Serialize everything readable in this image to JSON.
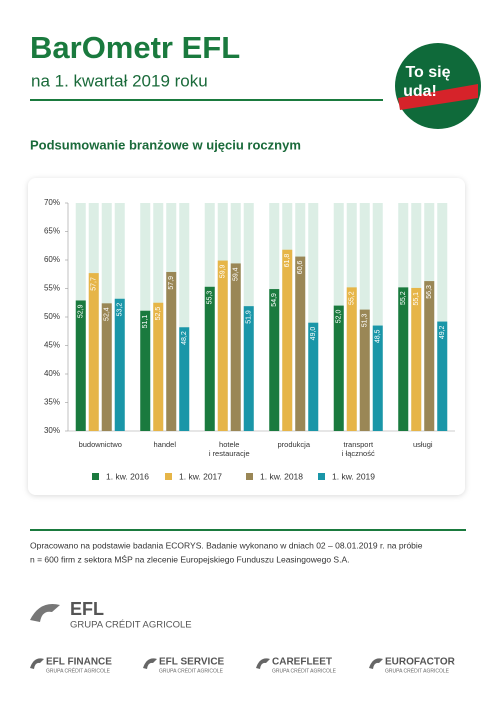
{
  "header": {
    "title": "BarOmetr EFL",
    "subtitle": "na 1. kwartał 2019 roku",
    "badge": [
      "To się",
      "uda!"
    ]
  },
  "chart_data": {
    "type": "bar",
    "title": "Podsumowanie branżowe w ujęciu rocznym",
    "categories": [
      "budownictwo",
      "handel",
      "hotele i restauracje",
      "produkcja",
      "transport i łączność",
      "usługi"
    ],
    "series": [
      {
        "name": "1. kw. 2016",
        "color": "#1a7a3e",
        "values": [
          52.9,
          51.1,
          55.3,
          54.9,
          52.0,
          55.2
        ],
        "value_labels": [
          "52,9",
          "51,1",
          "55,3",
          "54,9",
          "52,0",
          "55,2"
        ]
      },
      {
        "name": "1. kw. 2017",
        "color": "#e6b548",
        "values": [
          57.7,
          52.5,
          59.9,
          61.8,
          55.2,
          55.1
        ],
        "value_labels": [
          "57,7",
          "52,5",
          "59,9",
          "61,8",
          "55,2",
          "55,1"
        ]
      },
      {
        "name": "1. kw. 2018",
        "color": "#9a8756",
        "values": [
          52.4,
          57.9,
          59.4,
          60.6,
          51.3,
          56.3
        ],
        "value_labels": [
          "52,4",
          "57,9",
          "59,4",
          "60,6",
          "51,3",
          "56,3"
        ]
      },
      {
        "name": "1. kw. 2019",
        "color": "#1a96a8",
        "values": [
          53.2,
          48.2,
          51.9,
          49.0,
          48.5,
          49.2
        ],
        "value_labels": [
          "53,2",
          "48,2",
          "51,9",
          "49,0",
          "48,5",
          "49,2"
        ]
      }
    ],
    "ylim": [
      30,
      70
    ],
    "yticks": [
      {
        "value": 30,
        "label": "30%"
      },
      {
        "value": 35,
        "label": "35%"
      },
      {
        "value": 40,
        "label": "40%"
      },
      {
        "value": 45,
        "label": "45%"
      },
      {
        "value": 50,
        "label": "50%"
      },
      {
        "value": 55,
        "label": "55%"
      },
      {
        "value": 60,
        "label": "60%"
      },
      {
        "value": 65,
        "label": "65%"
      },
      {
        "value": 70,
        "label": "70%"
      }
    ],
    "grid": false
  },
  "footer": {
    "note": [
      "Opracowano na podstawie badania ECORYS. Badanie wykonano w dniach 02 – 08.01.2019 r. na próbie",
      "n = 600 firm z sektora MŚP na zlecenie Europejskiego Funduszu Leasingowego S.A."
    ],
    "logo": {
      "name": "EFL",
      "group": "GRUPA CRÉDIT AGRICOLE"
    },
    "brands": [
      {
        "name": "EFL FINANCE",
        "group": "GRUPA CRÉDIT AGRICOLE"
      },
      {
        "name": "EFL SERVICE",
        "group": "GRUPA CRÉDIT AGRICOLE"
      },
      {
        "name": "CAREFLEET",
        "group": "GRUPA CRÉDIT AGRICOLE"
      },
      {
        "name": "EUROFACTOR",
        "group": "GRUPA CRÉDIT AGRICOLE"
      }
    ]
  }
}
